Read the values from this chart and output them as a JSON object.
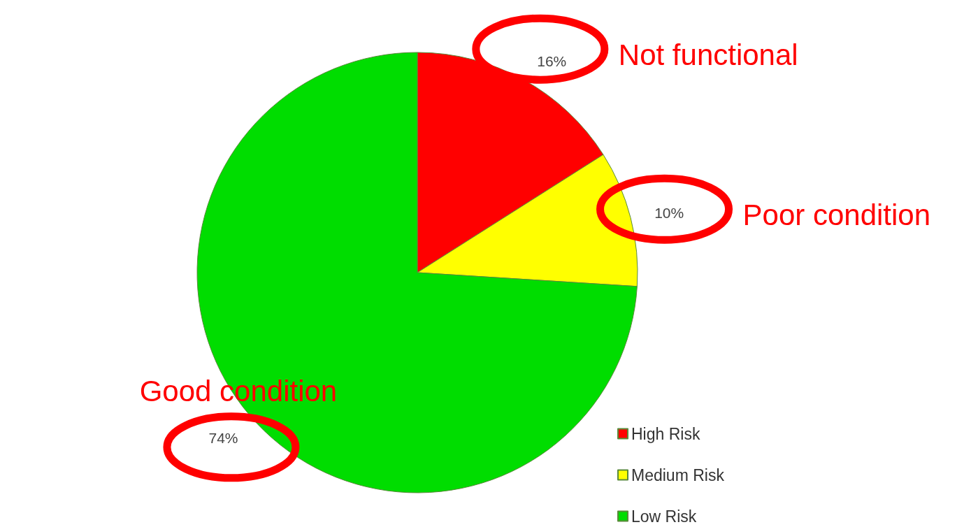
{
  "chart_data": {
    "type": "pie",
    "categories": [
      "High Risk",
      "Medium Risk",
      "Low Risk"
    ],
    "values": [
      16,
      10,
      74
    ],
    "colors": [
      "#ff0000",
      "#ffff00",
      "#00dd00"
    ],
    "value_labels": [
      "16%",
      "10%",
      "74%"
    ],
    "annotations": [
      "Not functional",
      "Poor condition",
      "Good condition"
    ],
    "legend": "bottom right"
  }
}
